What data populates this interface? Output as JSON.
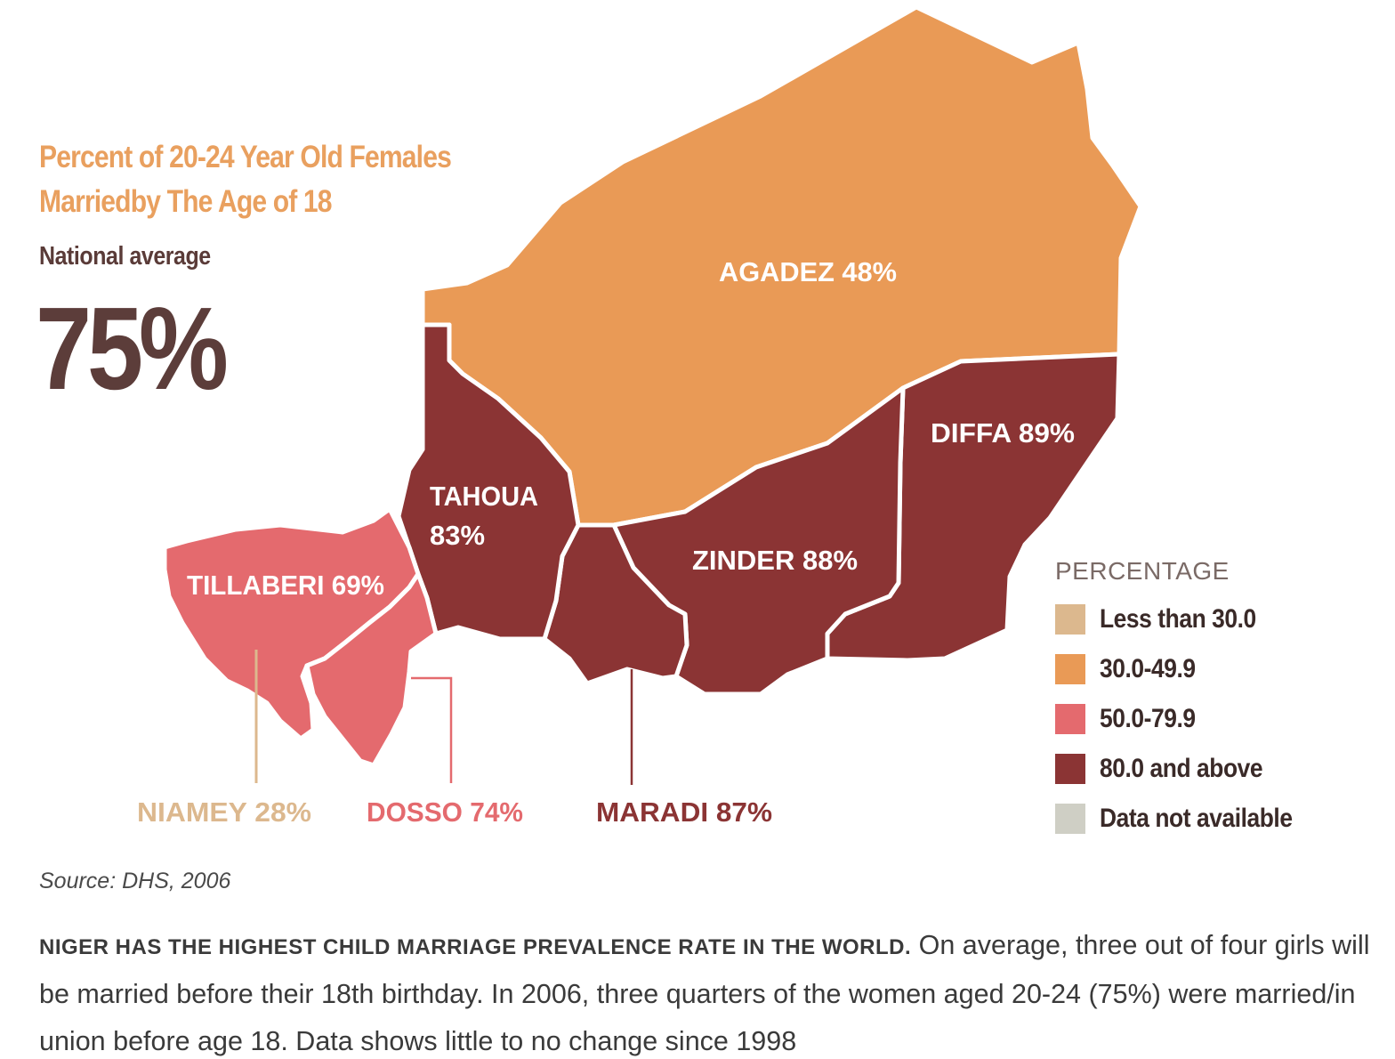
{
  "title": "Percent of 20-24 Year Old Females Marriedby The Age of 18",
  "national_label": "National average",
  "national_value": "75%",
  "regions": {
    "agadez": {
      "name": "AGADEZ",
      "value": "48%"
    },
    "diffa": {
      "name": "DIFFA",
      "value": "89%"
    },
    "tahoua": {
      "name": "TAHOUA",
      "value": "83%"
    },
    "zinder": {
      "name": "ZINDER",
      "value": "88%"
    },
    "tillaberi": {
      "name": "TILLABERI",
      "value": "69%"
    },
    "niamey": {
      "name": "NIAMEY",
      "value": "28%"
    },
    "dosso": {
      "name": "DOSSO",
      "value": "74%"
    },
    "maradi": {
      "name": "MARADI",
      "value": "87%"
    }
  },
  "legend": {
    "title": "PERCENTAGE",
    "items": [
      {
        "label": "Less than 30.0",
        "color": "#dcb88e"
      },
      {
        "label": "30.0-49.9",
        "color": "#e99a56"
      },
      {
        "label": "50.0-79.9",
        "color": "#e46a6e"
      },
      {
        "label": "80.0 and above",
        "color": "#8b3434"
      },
      {
        "label": "Data not available",
        "color": "#cfcfc5"
      }
    ]
  },
  "source": "Source: DHS, 2006",
  "body_lead": "NIGER HAS THE HIGHEST CHILD MARRIAGE PREVALENCE RATE IN THE WORLD.",
  "body_text": " On average, three out of four girls will be married before their 18th birthday. In 2006, three quarters of the women aged 20-24 (75%) were married/in union before age 18. Data shows little to no change since 1998"
}
